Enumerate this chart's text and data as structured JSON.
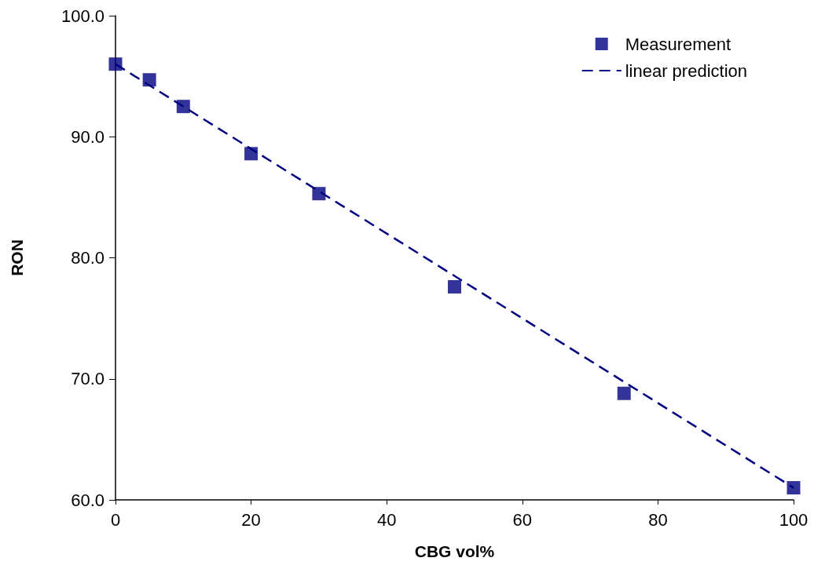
{
  "chart_data": {
    "type": "scatter",
    "xlabel": "CBG vol%",
    "ylabel": "RON",
    "xlim": [
      0,
      100
    ],
    "xticks": [
      0,
      20,
      40,
      60,
      80,
      100
    ],
    "ylim": [
      60,
      100
    ],
    "yticks": [
      {
        "value": 60,
        "label": "60.0"
      },
      {
        "value": 70,
        "label": "70.0"
      },
      {
        "value": 80,
        "label": "80.0"
      },
      {
        "value": 90,
        "label": "90.0"
      },
      {
        "value": 100,
        "label": "100.0"
      }
    ],
    "grid": false,
    "legend": "top right",
    "series": [
      {
        "name": "Measurement",
        "type": "scatter",
        "marker": "square",
        "color": "#000080",
        "x": [
          0,
          5,
          10,
          20,
          30,
          50,
          75,
          100
        ],
        "values": [
          96.0,
          94.7,
          92.5,
          88.6,
          85.3,
          77.6,
          68.8,
          61.0
        ]
      },
      {
        "name": "linear prediction",
        "type": "line",
        "line_style": "dashed",
        "marker": "none",
        "color": "#000080",
        "x": [
          0,
          100
        ],
        "values": [
          96.0,
          61.0
        ]
      }
    ]
  }
}
